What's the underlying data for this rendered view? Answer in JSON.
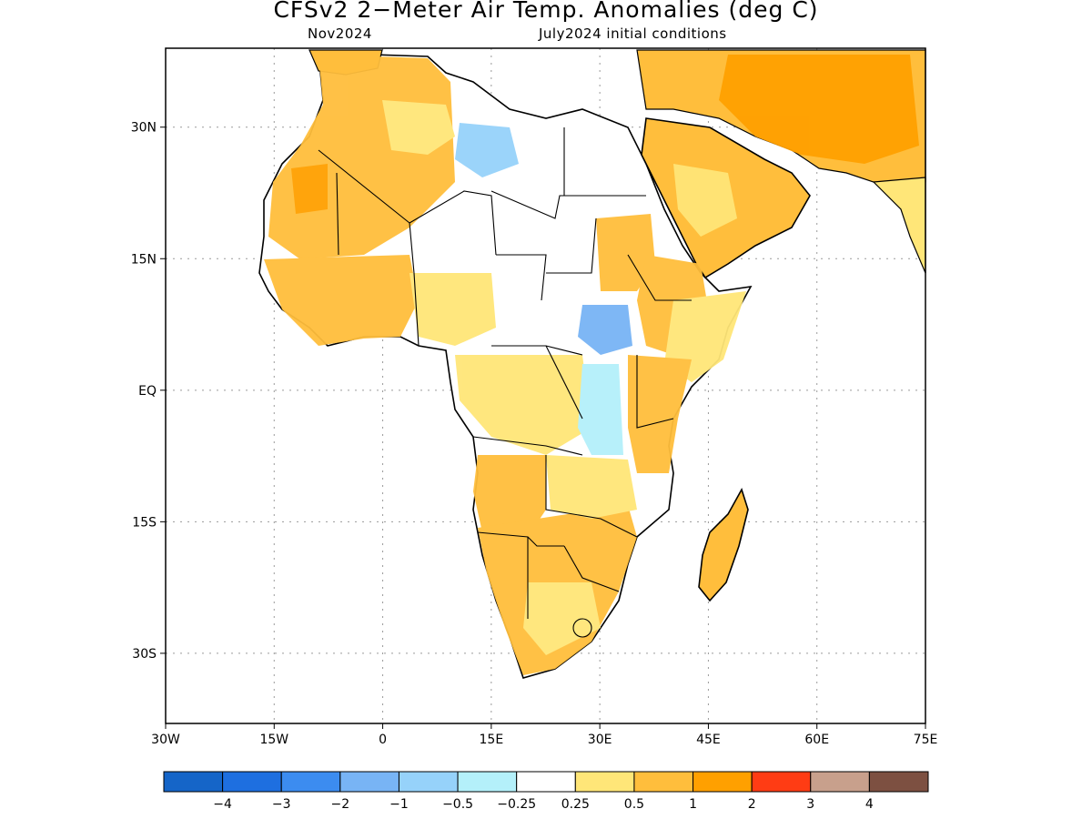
{
  "title": "CFSv2 2−Meter Air Temp. Anomalies (deg C)",
  "subtitle_left": "Nov2024",
  "subtitle_right": "July2024 initial conditions",
  "map": {
    "lon_range": [
      -30,
      75
    ],
    "lat_range": [
      -38,
      39
    ],
    "lat_ticks": [
      {
        "value": 30,
        "label": "30N"
      },
      {
        "value": 15,
        "label": "15N"
      },
      {
        "value": 0,
        "label": "EQ"
      },
      {
        "value": -15,
        "label": "15S"
      },
      {
        "value": -30,
        "label": "30S"
      }
    ],
    "lon_ticks": [
      {
        "value": -30,
        "label": "30W"
      },
      {
        "value": -15,
        "label": "15W"
      },
      {
        "value": 0,
        "label": "0"
      },
      {
        "value": 15,
        "label": "15E"
      },
      {
        "value": 30,
        "label": "30E"
      },
      {
        "value": 45,
        "label": "45E"
      },
      {
        "value": 60,
        "label": "60E"
      },
      {
        "value": 75,
        "label": "75E"
      }
    ],
    "grid": true
  },
  "colorbar": {
    "colors": [
      "#1565c8",
      "#1e6fe0",
      "#3c8cf0",
      "#78b4f5",
      "#96d2fa",
      "#b4f0fa",
      "#ffffff",
      "#ffe678",
      "#ffbe3c",
      "#ffa000",
      "#ff3c14",
      "#c8a08c",
      "#7d5041"
    ],
    "labels": [
      "−4",
      "−3",
      "−2",
      "−1",
      "−0.5",
      "−0.25",
      "0.25",
      "0.5",
      "1",
      "2",
      "3",
      "4"
    ]
  },
  "legend_colors": {
    "land_outline": "#000000",
    "gridline": "#999999"
  }
}
